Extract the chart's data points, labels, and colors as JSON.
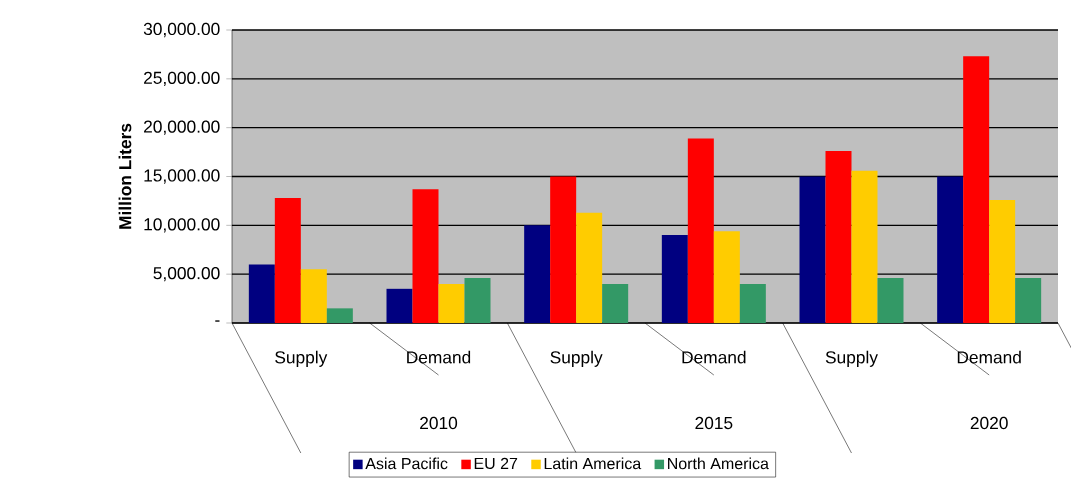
{
  "chart_data": {
    "type": "bar",
    "ylabel": "Million Liters",
    "categories": [
      "Supply",
      "Demand",
      "Supply",
      "Demand",
      "Supply",
      "Demand"
    ],
    "annotations": [
      "2010",
      "2015",
      "2020"
    ],
    "series": [
      {
        "name": "Asia Pacific",
        "color": "#000080",
        "values": [
          6000,
          3500,
          10000,
          9000,
          15000,
          15000
        ]
      },
      {
        "name": "EU 27",
        "color": "#ff0000",
        "values": [
          12800,
          13700,
          15000,
          18900,
          17600,
          27300
        ]
      },
      {
        "name": "Latin America",
        "color": "#ffcc00",
        "values": [
          5500,
          4000,
          11300,
          9400,
          15600,
          12600
        ]
      },
      {
        "name": "North America",
        "color": "#339966",
        "values": [
          1500,
          4600,
          4000,
          4000,
          4600,
          4600
        ]
      }
    ],
    "ylim": [
      0,
      30000
    ],
    "yticks": [
      {
        "value": 0,
        "label": "-"
      },
      {
        "value": 5000,
        "label": "5,000.00"
      },
      {
        "value": 10000,
        "label": "10,000.00"
      },
      {
        "value": 15000,
        "label": "15,000.00"
      },
      {
        "value": 20000,
        "label": "20,000.00"
      },
      {
        "value": 25000,
        "label": "25,000.00"
      },
      {
        "value": 30000,
        "label": "30,000.00"
      }
    ],
    "grid": "y",
    "legend": "bottom"
  }
}
